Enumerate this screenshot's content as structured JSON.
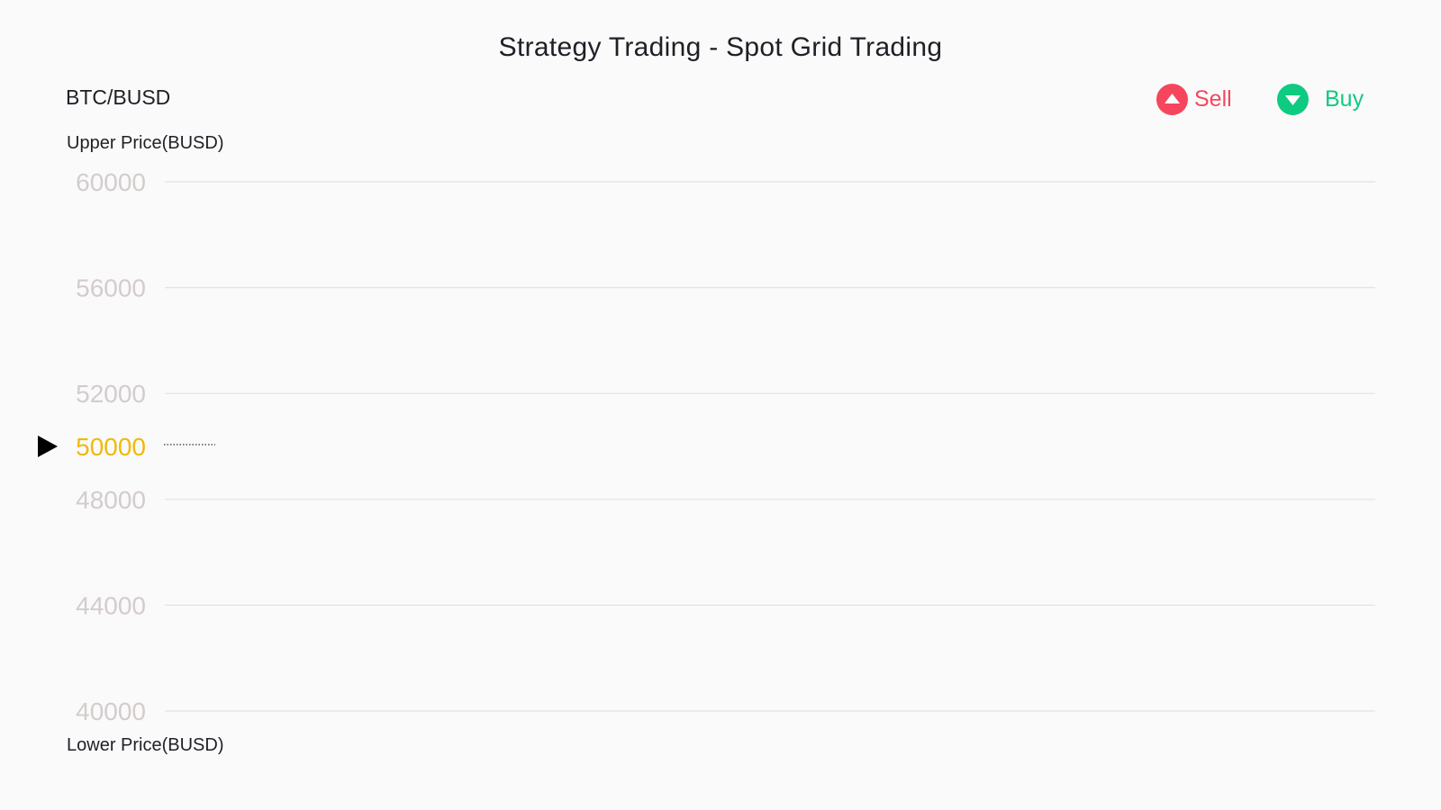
{
  "title": "Strategy Trading - Spot Grid Trading",
  "pair": "BTC/BUSD",
  "legend": [
    {
      "label": "Sell",
      "color": "#f6465d",
      "icon": "triangle-up-icon"
    },
    {
      "label": "Buy",
      "color": "#0ecb81",
      "icon": "triangle-down-icon"
    }
  ],
  "upper_caption": "Upper Price(BUSD)",
  "lower_caption": "Lower Price(BUSD)",
  "colors": {
    "grid_line": "#e2e2e2",
    "tick_label": "#d4cccc",
    "current_price": "#f0b90b",
    "marker": "#000000"
  },
  "chart_data": {
    "type": "line",
    "grid_levels": [
      60000,
      56000,
      52000,
      48000,
      44000,
      40000
    ],
    "tick_labels": [
      "60000",
      "56000",
      "52000",
      "50000",
      "48000",
      "44000",
      "40000"
    ],
    "current_price": 50000,
    "current_price_label": "50000",
    "ylim": [
      40000,
      60000
    ],
    "grid": true,
    "legend_position": "top-right"
  }
}
